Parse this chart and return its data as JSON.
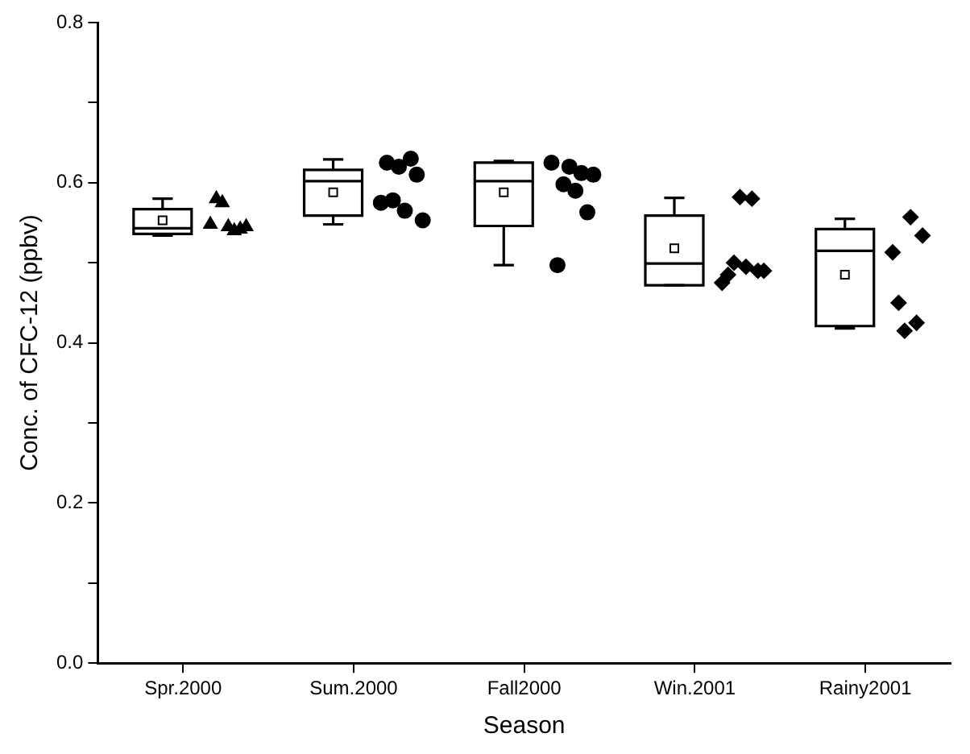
{
  "chart_data": {
    "type": "box",
    "xlabel": "Season",
    "ylabel": "Conc. of CFC-12 (ppbv)",
    "categories": [
      "Spr.2000",
      "Sum.2000",
      "Fall2000",
      "Win.2001",
      "Rainy2001"
    ],
    "boxes": [
      {
        "low": 0.534,
        "q1": 0.536,
        "median": 0.543,
        "q3": 0.567,
        "high": 0.58,
        "mean": 0.553
      },
      {
        "low": 0.548,
        "q1": 0.559,
        "median": 0.602,
        "q3": 0.616,
        "high": 0.629,
        "mean": 0.588
      },
      {
        "low": 0.497,
        "q1": 0.546,
        "median": 0.602,
        "q3": 0.625,
        "high": 0.627,
        "mean": 0.588
      },
      {
        "low": 0.472,
        "q1": 0.472,
        "median": 0.499,
        "q3": 0.559,
        "high": 0.581,
        "mean": 0.518
      },
      {
        "low": 0.418,
        "q1": 0.421,
        "median": 0.515,
        "q3": 0.542,
        "high": 0.555,
        "mean": 0.485
      }
    ],
    "series": [
      {
        "type": "scatter",
        "marker": "triangle",
        "color": "#000000",
        "x": [
          "Spr.2000",
          "Spr.2000",
          "Spr.2000",
          "Spr.2000",
          "Spr.2000",
          "Spr.2000",
          "Spr.2000"
        ],
        "values": [
          0.548,
          0.58,
          0.575,
          0.545,
          0.54,
          0.542,
          0.545
        ]
      },
      {
        "type": "scatter",
        "marker": "circle",
        "color": "#000000",
        "x": [
          "Sum.2000",
          "Sum.2000",
          "Sum.2000",
          "Sum.2000",
          "Sum.2000",
          "Sum.2000",
          "Sum.2000",
          "Sum.2000"
        ],
        "values": [
          0.575,
          0.625,
          0.578,
          0.62,
          0.565,
          0.63,
          0.61,
          0.553
        ]
      },
      {
        "type": "scatter",
        "marker": "circle",
        "color": "#000000",
        "x": [
          "Fall2000",
          "Fall2000",
          "Fall2000",
          "Fall2000",
          "Fall2000",
          "Fall2000",
          "Fall2000",
          "Fall2000"
        ],
        "values": [
          0.625,
          0.497,
          0.598,
          0.62,
          0.59,
          0.612,
          0.563,
          0.61
        ]
      },
      {
        "type": "scatter",
        "marker": "diamond",
        "color": "#000000",
        "x": [
          "Win.2001",
          "Win.2001",
          "Win.2001",
          "Win.2001",
          "Win.2001",
          "Win.2001",
          "Win.2001",
          "Win.2001"
        ],
        "values": [
          0.475,
          0.485,
          0.5,
          0.582,
          0.495,
          0.58,
          0.49,
          0.49
        ]
      },
      {
        "type": "scatter",
        "marker": "diamond",
        "color": "#000000",
        "x": [
          "Rainy2001",
          "Rainy2001",
          "Rainy2001",
          "Rainy2001",
          "Rainy2001",
          "Rainy2001"
        ],
        "values": [
          0.513,
          0.45,
          0.415,
          0.557,
          0.425,
          0.534
        ]
      }
    ],
    "ylim": [
      0,
      0.8
    ],
    "yticks": [
      {
        "value": 0,
        "label": "0.0"
      },
      {
        "value": 0.1,
        "label": null
      },
      {
        "value": 0.2,
        "label": "0.2"
      },
      {
        "value": 0.3,
        "label": null
      },
      {
        "value": 0.4,
        "label": "0.4"
      },
      {
        "value": 0.5,
        "label": null
      },
      {
        "value": 0.6,
        "label": "0.6"
      },
      {
        "value": 0.7,
        "label": null
      },
      {
        "value": 0.8,
        "label": "0.8"
      }
    ],
    "grid": false,
    "legend": false
  }
}
